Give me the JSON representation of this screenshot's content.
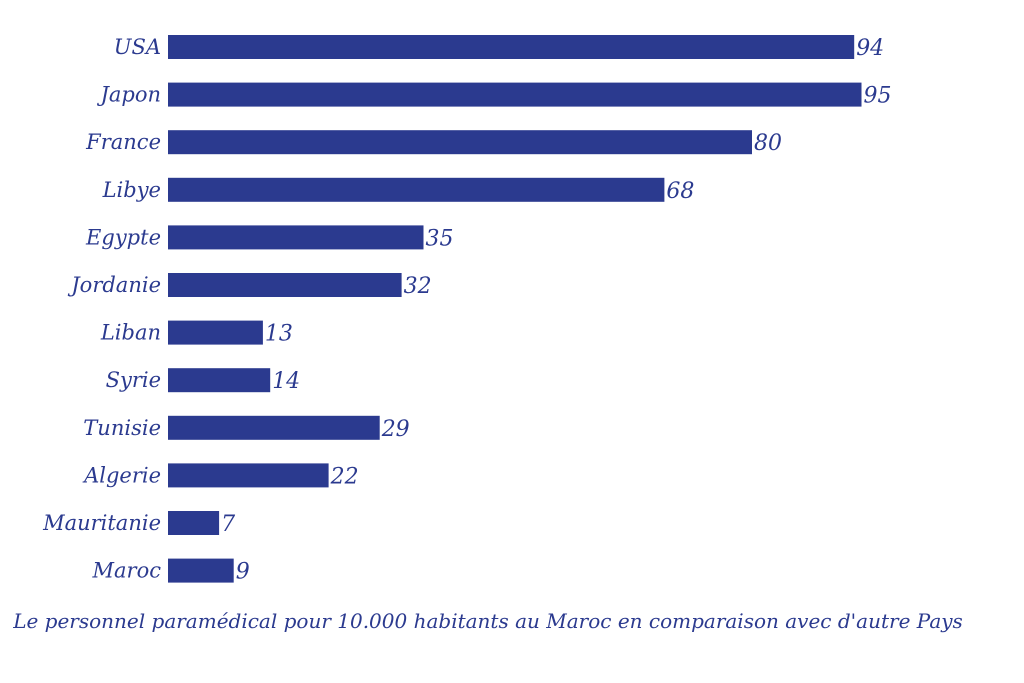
{
  "chart_data": {
    "type": "bar",
    "orientation": "horizontal",
    "categories": [
      "USA",
      "Japon",
      "France",
      "Libye",
      "Egypte",
      "Jordanie",
      "Liban",
      "Syrie",
      "Tunisie",
      "Algerie",
      "Mauritanie",
      "Maroc"
    ],
    "values": [
      94,
      95,
      80,
      68,
      35,
      32,
      13,
      14,
      29,
      22,
      7,
      9
    ],
    "caption": "Le personnel paramédical pour 10.000 habitants au Maroc en comparaison avec d'autre Pays",
    "bar_color": "#2b3a8f",
    "text_color": "#2b3a8f",
    "grid": false,
    "legend": "none"
  }
}
